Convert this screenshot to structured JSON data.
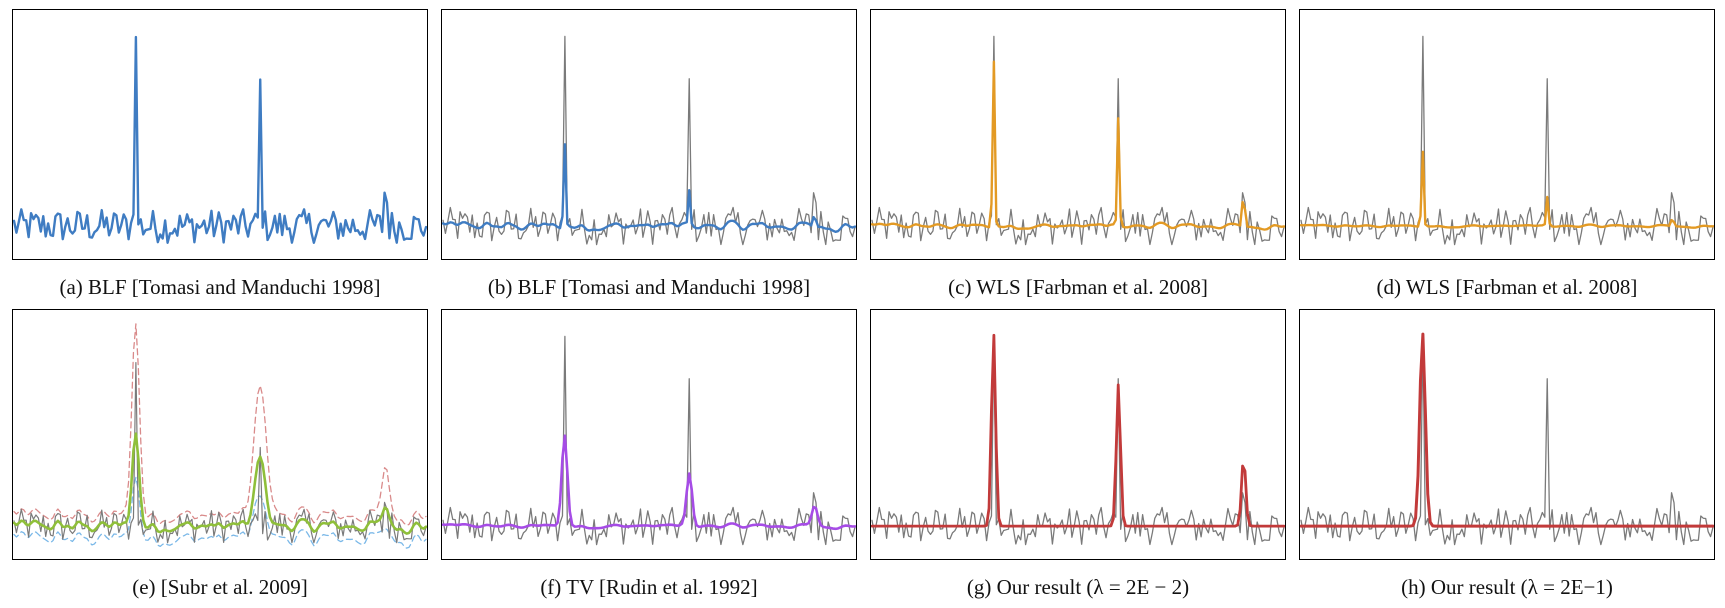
{
  "figure": {
    "colors": {
      "noisy": "#7a7a7a",
      "blue": "#3f7cc2",
      "orange": "#e39a24",
      "purple": "#a64ce6",
      "red": "#c23a3a",
      "green": "#8fbf3a",
      "pink_dashed": "#d98a8a",
      "light_blue_dashed": "#7ab8e8"
    }
  },
  "chart_data": [
    {
      "type": "line",
      "panel": "a",
      "caption": "(a) BLF [Tomasi and Manduchi 1998]",
      "xlim": [
        0,
        1
      ],
      "ylim": [
        -0.12,
        1.0
      ],
      "grid": false,
      "legend": "none",
      "series": [
        {
          "role": "filtered",
          "color": "blue",
          "width": 2.4,
          "smooth": 0.05,
          "noise_scale": 0.9,
          "peaks": [
            {
              "x": 0.295,
              "h": 0.93
            },
            {
              "x": 0.598,
              "h": 0.68
            },
            {
              "x": 0.902,
              "h": 0.28
            }
          ]
        }
      ]
    },
    {
      "type": "line",
      "panel": "b",
      "caption": "(b) BLF [Tomasi and Manduchi 1998]",
      "xlim": [
        0,
        1
      ],
      "ylim": [
        -0.12,
        1.0
      ],
      "grid": false,
      "legend": "none",
      "series": [
        {
          "role": "input",
          "color": "noisy",
          "width": 1.3,
          "smooth": 0.0,
          "noise_scale": 1.0,
          "peaks": [
            {
              "x": 0.295,
              "h": 0.93
            },
            {
              "x": 0.598,
              "h": 0.68
            },
            {
              "x": 0.902,
              "h": 0.28
            }
          ]
        },
        {
          "role": "filtered",
          "color": "blue",
          "width": 2.4,
          "smooth": 0.55,
          "noise_scale": 0.45,
          "peaks": [
            {
              "x": 0.295,
              "h": 0.42
            },
            {
              "x": 0.598,
              "h": 0.17
            },
            {
              "x": 0.902,
              "h": 0.08
            }
          ]
        }
      ]
    },
    {
      "type": "line",
      "panel": "c",
      "caption": "(c) WLS [Farbman et al. 2008]",
      "xlim": [
        0,
        1
      ],
      "ylim": [
        -0.12,
        1.0
      ],
      "grid": false,
      "legend": "none",
      "series": [
        {
          "role": "input",
          "color": "noisy",
          "width": 1.3,
          "smooth": 0.0,
          "noise_scale": 1.0,
          "peaks": [
            {
              "x": 0.295,
              "h": 0.93
            },
            {
              "x": 0.598,
              "h": 0.68
            },
            {
              "x": 0.902,
              "h": 0.28
            }
          ]
        },
        {
          "role": "filtered",
          "color": "orange",
          "width": 2.4,
          "smooth": 0.7,
          "noise_scale": 0.3,
          "peaks": [
            {
              "x": 0.295,
              "h": 0.84
            },
            {
              "x": 0.598,
              "h": 0.52
            },
            {
              "x": 0.902,
              "h": 0.2
            }
          ]
        }
      ]
    },
    {
      "type": "line",
      "panel": "d",
      "caption": "(d) WLS [Farbman et al. 2008]",
      "xlim": [
        0,
        1
      ],
      "ylim": [
        -0.12,
        1.0
      ],
      "grid": false,
      "legend": "none",
      "series": [
        {
          "role": "input",
          "color": "noisy",
          "width": 1.3,
          "smooth": 0.0,
          "noise_scale": 1.0,
          "peaks": [
            {
              "x": 0.295,
              "h": 0.93
            },
            {
              "x": 0.598,
              "h": 0.68
            },
            {
              "x": 0.902,
              "h": 0.28
            }
          ]
        },
        {
          "role": "filtered",
          "color": "orange",
          "width": 2.4,
          "smooth": 0.85,
          "noise_scale": 0.15,
          "peaks": [
            {
              "x": 0.295,
              "h": 0.38
            },
            {
              "x": 0.598,
              "h": 0.14
            },
            {
              "x": 0.902,
              "h": 0.05
            }
          ]
        }
      ]
    },
    {
      "type": "line",
      "panel": "e",
      "caption": "(e) [Subr et al. 2009]",
      "xlim": [
        0,
        1
      ],
      "ylim": [
        -0.12,
        1.0
      ],
      "grid": false,
      "legend": "none",
      "series": [
        {
          "role": "upper_envelope",
          "color": "pink_dashed",
          "width": 1.3,
          "dash": true,
          "smooth": 0.3,
          "noise_scale": 0.7,
          "offset": 0.05,
          "peaks": [
            {
              "x": 0.295,
              "h": 0.93,
              "w": 2.2
            },
            {
              "x": 0.598,
              "h": 0.62,
              "w": 3.5
            },
            {
              "x": 0.902,
              "h": 0.25,
              "w": 2.0
            }
          ]
        },
        {
          "role": "lower_envelope",
          "color": "light_blue_dashed",
          "width": 1.3,
          "dash": true,
          "smooth": 0.3,
          "noise_scale": 0.7,
          "offset": -0.06,
          "peaks": [
            {
              "x": 0.295,
              "h": 0.3,
              "w": 2.2
            },
            {
              "x": 0.598,
              "h": 0.2,
              "w": 3.5
            },
            {
              "x": 0.902,
              "h": 0.06,
              "w": 2.0
            }
          ]
        },
        {
          "role": "input",
          "color": "noisy",
          "width": 1.2,
          "smooth": 0.0,
          "noise_scale": 0.9,
          "peaks": [
            {
              "x": 0.295,
              "h": 0.8
            },
            {
              "x": 0.598,
              "h": 0.35
            },
            {
              "x": 0.902,
              "h": 0.2
            }
          ]
        },
        {
          "role": "filtered",
          "color": "green",
          "width": 2.6,
          "smooth": 0.35,
          "noise_scale": 0.55,
          "peaks": [
            {
              "x": 0.295,
              "h": 0.45,
              "w": 2.0
            },
            {
              "x": 0.598,
              "h": 0.33,
              "w": 3.0
            },
            {
              "x": 0.902,
              "h": 0.1,
              "w": 1.8
            }
          ]
        }
      ]
    },
    {
      "type": "line",
      "panel": "f",
      "caption": "(f) TV [Rudin et al. 1992]",
      "xlim": [
        0,
        1
      ],
      "ylim": [
        -0.12,
        1.0
      ],
      "grid": false,
      "legend": "none",
      "series": [
        {
          "role": "input",
          "color": "noisy",
          "width": 1.3,
          "smooth": 0.0,
          "noise_scale": 1.0,
          "peaks": [
            {
              "x": 0.295,
              "h": 0.93
            },
            {
              "x": 0.598,
              "h": 0.68
            },
            {
              "x": 0.902,
              "h": 0.28
            }
          ]
        },
        {
          "role": "filtered",
          "color": "purple",
          "width": 2.6,
          "smooth": 0.8,
          "noise_scale": 0.25,
          "peaks": [
            {
              "x": 0.295,
              "h": 0.44,
              "w": 1.6
            },
            {
              "x": 0.598,
              "h": 0.25,
              "w": 1.6
            },
            {
              "x": 0.902,
              "h": 0.1,
              "w": 1.6
            }
          ]
        }
      ]
    },
    {
      "type": "line",
      "panel": "g",
      "caption": "(g) Our result (λ = 2E − 2)",
      "xlim": [
        0,
        1
      ],
      "ylim": [
        -0.12,
        1.0
      ],
      "grid": false,
      "legend": "none",
      "series": [
        {
          "role": "input",
          "color": "noisy",
          "width": 1.3,
          "smooth": 0.0,
          "noise_scale": 1.0,
          "peaks": [
            {
              "x": 0.295,
              "h": 0.93
            },
            {
              "x": 0.598,
              "h": 0.68
            },
            {
              "x": 0.902,
              "h": 0.28
            }
          ]
        },
        {
          "role": "filtered",
          "color": "red",
          "width": 2.8,
          "smooth": 1.0,
          "noise_scale": 0.0,
          "peaks": [
            {
              "x": 0.295,
              "h": 0.93,
              "w": 1.2
            },
            {
              "x": 0.598,
              "h": 0.68,
              "w": 1.2
            },
            {
              "x": 0.902,
              "h": 0.33,
              "w": 1.2
            }
          ]
        }
      ]
    },
    {
      "type": "line",
      "panel": "h",
      "caption": "(h) Our result (λ = 2E−1)",
      "xlim": [
        0,
        1
      ],
      "ylim": [
        -0.12,
        1.0
      ],
      "grid": false,
      "legend": "none",
      "series": [
        {
          "role": "input",
          "color": "noisy",
          "width": 1.3,
          "smooth": 0.0,
          "noise_scale": 1.0,
          "peaks": [
            {
              "x": 0.295,
              "h": 0.93
            },
            {
              "x": 0.598,
              "h": 0.68
            },
            {
              "x": 0.902,
              "h": 0.28
            }
          ]
        },
        {
          "role": "filtered",
          "color": "red",
          "width": 3.0,
          "smooth": 1.0,
          "noise_scale": 0.0,
          "peaks": [
            {
              "x": 0.295,
              "h": 0.93,
              "w": 1.6
            }
          ]
        }
      ]
    }
  ]
}
